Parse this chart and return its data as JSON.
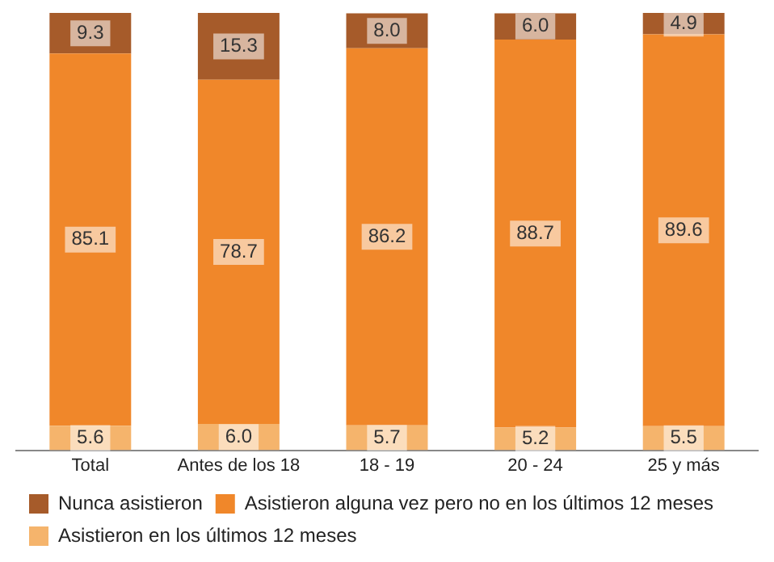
{
  "chart_data": {
    "type": "bar",
    "stacked": true,
    "categories": [
      "Total",
      "Antes de los 18",
      "18 - 19",
      "20 - 24",
      "25 y más"
    ],
    "series": [
      {
        "name": "Asistieron en los últimos 12 meses",
        "color": "#f5b46c",
        "values": [
          5.6,
          6.0,
          5.7,
          5.2,
          5.5
        ],
        "value_labels": [
          "5.6",
          "6.0",
          "5.7",
          "5.2",
          "5.5"
        ]
      },
      {
        "name": "Asistieron alguna vez pero no en los últimos 12 meses",
        "color": "#f0872a",
        "values": [
          85.1,
          78.7,
          86.2,
          88.7,
          89.6
        ],
        "value_labels": [
          "85.1",
          "78.7",
          "86.2",
          "88.7",
          "89.6"
        ]
      },
      {
        "name": "Nunca asistieron",
        "color": "#a65b2a",
        "values": [
          9.3,
          15.3,
          8.0,
          6.0,
          4.9
        ],
        "value_labels": [
          "9.3",
          "15.3",
          "8.0",
          "6.0",
          "4.9"
        ]
      }
    ],
    "ylim": [
      0,
      100
    ],
    "tick_labels": "x",
    "legend": "bottom",
    "grid": false
  }
}
